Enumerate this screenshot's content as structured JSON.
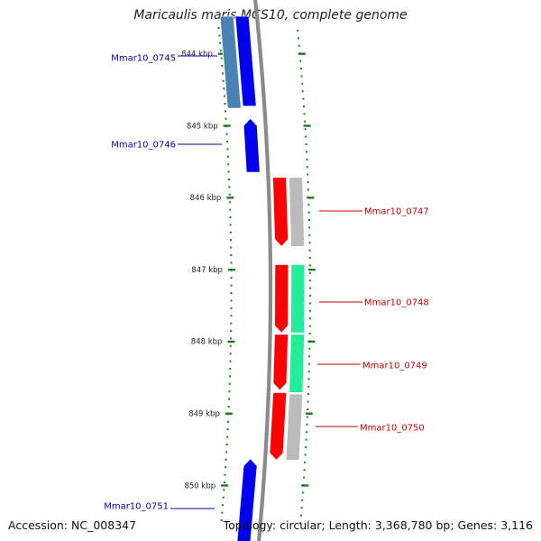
{
  "title": "Maricaulis maris MCS10, complete genome",
  "accession": "Accession: NC_008347",
  "topology": "Topology: circular; Length: 3,368,780 bp; Genes: 3,116",
  "ticks": [
    {
      "kbp": 844,
      "label": "844 kbp"
    },
    {
      "kbp": 845,
      "label": "845 kbp"
    },
    {
      "kbp": 846,
      "label": "846 kbp"
    },
    {
      "kbp": 847,
      "label": "847 kbp"
    },
    {
      "kbp": 848,
      "label": "848 kbp"
    },
    {
      "kbp": 849,
      "label": "849 kbp"
    },
    {
      "kbp": 850,
      "label": "850 kbp"
    }
  ],
  "genes": [
    {
      "id": "Mmar10_0745",
      "strand": "forward",
      "start_kbp": 843.67,
      "end_kbp": 844.73,
      "color": "#0000ee"
    },
    {
      "id": "Mmar10_0746",
      "strand": "forward",
      "start_kbp": 844.9,
      "end_kbp": 845.65,
      "color": "#0000ee"
    },
    {
      "id": "Mmar10_0747",
      "strand": "reverse",
      "start_kbp": 845.72,
      "end_kbp": 846.68,
      "color": "#ff0000"
    },
    {
      "id": "Mmar10_0748",
      "strand": "reverse",
      "start_kbp": 846.93,
      "end_kbp": 847.88,
      "color": "#ff0000"
    },
    {
      "id": "Mmar10_0749",
      "strand": "reverse",
      "start_kbp": 847.9,
      "end_kbp": 848.68,
      "color": "#ff0000"
    },
    {
      "id": "Mmar10_0750",
      "strand": "reverse",
      "start_kbp": 848.71,
      "end_kbp": 849.65,
      "color": "#ff0000"
    },
    {
      "id": "Mmar10_0751",
      "strand": "forward",
      "start_kbp": 849.63,
      "end_kbp": 850.4,
      "color": "#0000ee"
    }
  ],
  "cog_colors": [
    "#4a82b4",
    "#bbbbbb",
    "#22ee99",
    "#0000ee",
    "#ff0000"
  ]
}
